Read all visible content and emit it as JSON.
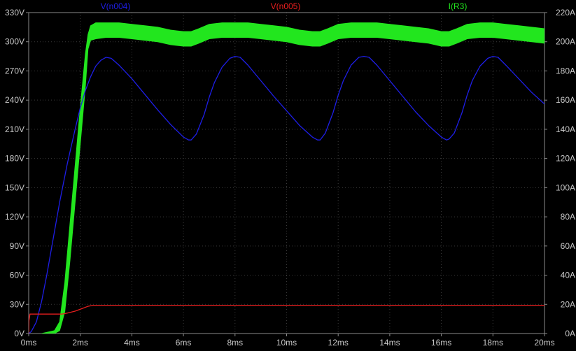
{
  "chart_data": {
    "type": "line",
    "background": "#000000",
    "grid": true,
    "grid_color": "#3a3a3a",
    "axis_color": "#8a8a8a",
    "text_color": "#c8c8c8",
    "x_axis": {
      "range": [
        0,
        20
      ],
      "unit": "ms",
      "ticks": [
        0,
        2,
        4,
        6,
        8,
        10,
        12,
        14,
        16,
        18,
        20
      ],
      "tick_labels": [
        "0ms",
        "2ms",
        "4ms",
        "6ms",
        "8ms",
        "10ms",
        "12ms",
        "14ms",
        "16ms",
        "18ms",
        "20ms"
      ]
    },
    "y_left": {
      "range": [
        0,
        330
      ],
      "unit": "V",
      "ticks": [
        0,
        30,
        60,
        90,
        120,
        150,
        180,
        210,
        240,
        270,
        300,
        330
      ],
      "tick_labels": [
        "0V",
        "30V",
        "60V",
        "90V",
        "120V",
        "150V",
        "180V",
        "210V",
        "240V",
        "270V",
        "300V",
        "330V"
      ]
    },
    "y_right": {
      "range": [
        0,
        220
      ],
      "unit": "A",
      "ticks": [
        0,
        20,
        40,
        60,
        80,
        100,
        120,
        140,
        160,
        180,
        200,
        220
      ],
      "tick_labels": [
        "0A",
        "20A",
        "40A",
        "60A",
        "80A",
        "100A",
        "120A",
        "140A",
        "160A",
        "180A",
        "200A",
        "220A"
      ]
    },
    "legend_placement": "top",
    "series": [
      {
        "name": "V(n004)",
        "axis": "left",
        "color": "#1e1ee6",
        "x": [
          0,
          0.1,
          0.3,
          0.5,
          0.7,
          0.9,
          1.2,
          1.5,
          1.8,
          2.0,
          2.2,
          2.4,
          2.6,
          2.8,
          3.0,
          3.2,
          3.5,
          4.0,
          4.5,
          5.0,
          5.5,
          6.0,
          6.2,
          6.3,
          6.5,
          6.8,
          7.0,
          7.2,
          7.5,
          7.8,
          8.0,
          8.2,
          8.5,
          9.0,
          9.5,
          10.0,
          10.5,
          11.0,
          11.2,
          11.3,
          11.5,
          11.8,
          12.0,
          12.2,
          12.5,
          12.8,
          13.0,
          13.2,
          13.5,
          14.0,
          14.5,
          15.0,
          15.5,
          16.0,
          16.2,
          16.3,
          16.5,
          16.8,
          17.0,
          17.2,
          17.5,
          17.8,
          18.0,
          18.2,
          18.5,
          19.0,
          19.5,
          20.0
        ],
        "y": [
          0,
          2,
          12,
          33,
          60,
          90,
          135,
          175,
          210,
          232,
          250,
          264,
          275,
          281,
          284,
          283,
          276,
          262,
          246,
          230,
          215,
          202,
          199,
          199,
          205,
          225,
          243,
          258,
          274,
          283,
          285,
          284,
          276,
          260,
          244,
          229,
          214,
          202,
          199,
          199,
          206,
          227,
          245,
          260,
          276,
          284,
          285,
          284,
          276,
          260,
          244,
          228,
          214,
          202,
          199,
          200,
          206,
          227,
          245,
          260,
          275,
          283,
          285,
          284,
          276,
          262,
          248,
          236
        ]
      },
      {
        "name": "V(n005)",
        "axis": "left",
        "color": "#e61e1e",
        "x": [
          0,
          0.01,
          0.05,
          1.3,
          1.5,
          1.8,
          2.1,
          2.3,
          2.5,
          5,
          10,
          15,
          20
        ],
        "y": [
          0,
          13,
          20,
          20,
          21,
          23,
          26,
          28,
          29,
          29,
          29,
          29,
          29
        ]
      },
      {
        "name": "I(R3)",
        "axis": "right",
        "color": "#22e61e",
        "x": [
          0.5,
          1.0,
          1.2,
          1.4,
          1.6,
          1.8,
          2.0,
          2.2,
          2.3,
          2.4,
          2.6,
          3.0,
          3.5,
          4.0,
          4.5,
          5.0,
          5.5,
          6.0,
          6.3,
          6.6,
          7.0,
          7.5,
          8.0,
          8.5,
          9.0,
          9.5,
          10.0,
          10.5,
          11.0,
          11.3,
          11.6,
          12.0,
          12.5,
          13.0,
          13.5,
          14.0,
          14.5,
          15.0,
          15.5,
          16.0,
          16.3,
          16.6,
          17.0,
          17.5,
          18.0,
          18.5,
          19.0,
          19.5,
          20.0
        ],
        "y_upper": [
          0,
          2,
          8,
          35,
          75,
          115,
          155,
          192,
          205,
          211,
          213,
          213,
          213,
          212,
          211,
          210,
          208,
          207,
          207,
          209,
          212,
          213,
          213,
          213,
          212,
          211,
          210,
          208,
          207,
          207,
          209,
          212,
          213,
          213,
          213,
          212,
          211,
          210,
          209,
          207,
          207,
          209,
          212,
          213,
          213,
          212,
          211,
          210,
          209
        ],
        "y_lower": [
          0,
          0,
          2,
          15,
          50,
          90,
          130,
          170,
          195,
          201,
          202,
          203,
          203,
          202,
          201,
          200,
          198,
          197,
          197,
          199,
          202,
          203,
          203,
          203,
          202,
          201,
          200,
          198,
          197,
          197,
          199,
          202,
          203,
          203,
          203,
          202,
          201,
          200,
          199,
          197,
          197,
          199,
          202,
          203,
          203,
          202,
          201,
          200,
          199
        ]
      }
    ]
  }
}
